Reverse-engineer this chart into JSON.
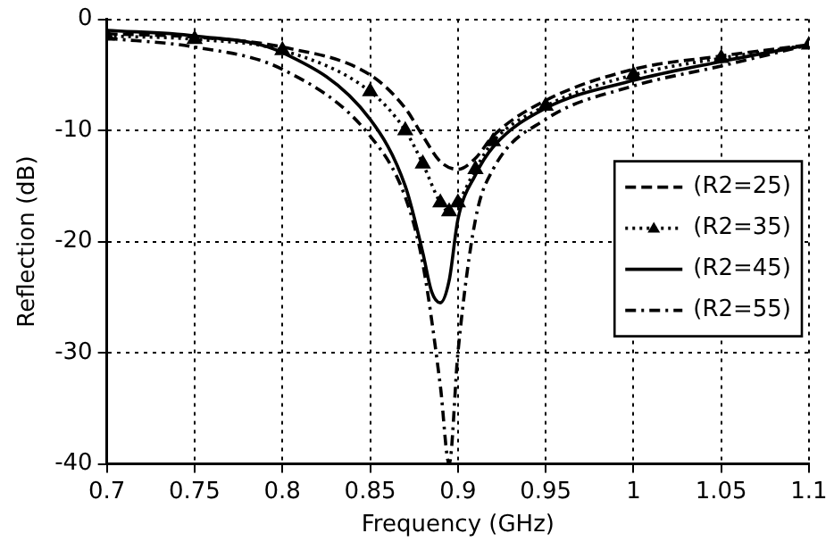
{
  "chart_data": {
    "type": "line",
    "xlabel": "Frequency (GHz)",
    "ylabel": "Reflection (dB)",
    "xlim": [
      0.7,
      1.1
    ],
    "xticks": [
      0.7,
      0.75,
      0.8,
      0.85,
      0.9,
      0.95,
      1,
      1.05,
      1.1
    ],
    "ylim": [
      -40,
      0
    ],
    "yticks": [
      -40,
      -30,
      -20,
      -10,
      0
    ],
    "grid": true,
    "legend": "right",
    "series": [
      {
        "name": "(R2=25)",
        "color": "#000000",
        "line_style": "dashed",
        "marker": "none",
        "x": [
          0.7,
          0.75,
          0.8,
          0.85,
          0.87,
          0.88,
          0.89,
          0.9,
          0.91,
          0.92,
          0.95,
          1,
          1.05,
          1.1
        ],
        "values": [
          -1.3,
          -1.6,
          -2.5,
          -5,
          -8,
          -10.5,
          -12.8,
          -13.5,
          -12.5,
          -10.5,
          -7.3,
          -4.5,
          -3.3,
          -2.3
        ]
      },
      {
        "name": "(R2=35)",
        "color": "#000000",
        "line_style": "dotted",
        "marker": "triangle",
        "x": [
          0.7,
          0.75,
          0.8,
          0.85,
          0.87,
          0.88,
          0.89,
          0.895,
          0.9,
          0.91,
          0.92,
          0.95,
          1,
          1.05,
          1.1
        ],
        "values": [
          -1.5,
          -1.8,
          -2.8,
          -6.5,
          -10,
          -13,
          -16.5,
          -17.3,
          -16.5,
          -13.5,
          -11,
          -7.8,
          -5,
          -3.5,
          -2.3
        ]
      },
      {
        "name": "(R2=45)",
        "color": "#000000",
        "line_style": "solid",
        "marker": "none",
        "x": [
          0.7,
          0.75,
          0.8,
          0.85,
          0.87,
          0.88,
          0.885,
          0.89,
          0.895,
          0.9,
          0.91,
          0.92,
          0.95,
          1,
          1.05,
          1.1
        ],
        "values": [
          -1,
          -1.5,
          -3,
          -9,
          -15,
          -21,
          -24.5,
          -25.5,
          -23.5,
          -18,
          -14,
          -11.5,
          -8,
          -5.5,
          -3.8,
          -2.3
        ]
      },
      {
        "name": "(R2=55)",
        "color": "#000000",
        "line_style": "dashdot",
        "marker": "none",
        "x": [
          0.7,
          0.75,
          0.8,
          0.85,
          0.87,
          0.88,
          0.89,
          0.895,
          0.9,
          0.91,
          0.92,
          0.95,
          1,
          1.05,
          1.1
        ],
        "values": [
          -1.7,
          -2.5,
          -4.5,
          -10.5,
          -16,
          -22,
          -33,
          -40,
          -30,
          -18,
          -13.5,
          -9,
          -6,
          -4.2,
          -2.3
        ]
      }
    ]
  }
}
